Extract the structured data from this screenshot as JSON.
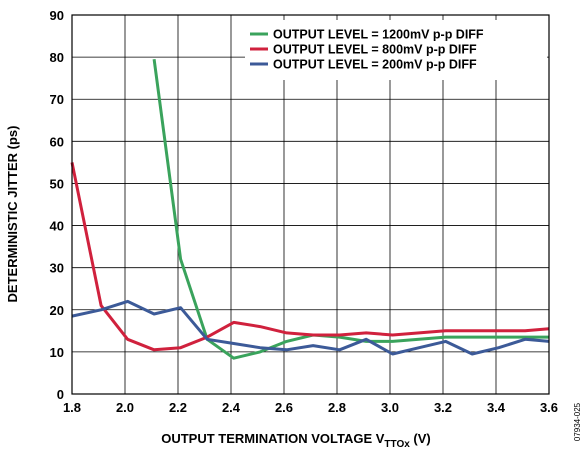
{
  "chart_data": {
    "type": "line",
    "xlabel_prefix": "OUTPUT TERMINATION VOLTAGE V",
    "xlabel_sub": "TTOx",
    "xlabel_suffix": " (V)",
    "ylabel": "DETERMINISTIC JITTER (ps)",
    "xlim": [
      1.8,
      3.6
    ],
    "ylim": [
      0,
      90
    ],
    "xticks": [
      "1.8",
      "2.0",
      "2.2",
      "2.4",
      "2.6",
      "2.8",
      "3.0",
      "3.2",
      "3.4",
      "3.6"
    ],
    "yticks": [
      "0",
      "10",
      "20",
      "30",
      "40",
      "50",
      "60",
      "70",
      "80",
      "90"
    ],
    "grid": true,
    "legend_position": "top-right",
    "figure_id": "07934-025",
    "series": [
      {
        "name": "OUTPUT LEVEL = 1200mV p-p DIFF",
        "color": "#3aa35c",
        "x": [
          2.11,
          2.21,
          2.31,
          2.41,
          2.51,
          2.61,
          2.71,
          2.81,
          2.91,
          3.01,
          3.11,
          3.21,
          3.31,
          3.41,
          3.51,
          3.6
        ],
        "y": [
          79.5,
          32,
          13,
          8.5,
          10,
          12.5,
          14,
          13.5,
          12.5,
          12.5,
          13,
          13.5,
          13.5,
          13.5,
          13.5,
          13.5
        ]
      },
      {
        "name": "OUTPUT LEVEL = 800mV p-p DIFF",
        "color": "#d0213d",
        "x": [
          1.8,
          1.91,
          2.01,
          2.11,
          2.21,
          2.31,
          2.41,
          2.51,
          2.61,
          2.71,
          2.81,
          2.91,
          3.01,
          3.11,
          3.21,
          3.31,
          3.41,
          3.51,
          3.6
        ],
        "y": [
          55,
          21,
          13,
          10.5,
          11,
          13.5,
          17,
          16,
          14.5,
          14,
          14,
          14.5,
          14,
          14.5,
          15,
          15,
          15,
          15,
          15.5
        ]
      },
      {
        "name": "OUTPUT LEVEL = 200mV p-p DIFF",
        "color": "#3c5a98",
        "x": [
          1.8,
          1.91,
          2.01,
          2.11,
          2.21,
          2.31,
          2.41,
          2.51,
          2.61,
          2.71,
          2.81,
          2.91,
          3.01,
          3.11,
          3.21,
          3.31,
          3.41,
          3.51,
          3.6
        ],
        "y": [
          18.5,
          20,
          22,
          19,
          20.5,
          13,
          12,
          11,
          10.5,
          11.5,
          10.5,
          13,
          9.5,
          11,
          12.5,
          9.5,
          11,
          13,
          12.5
        ]
      }
    ]
  }
}
